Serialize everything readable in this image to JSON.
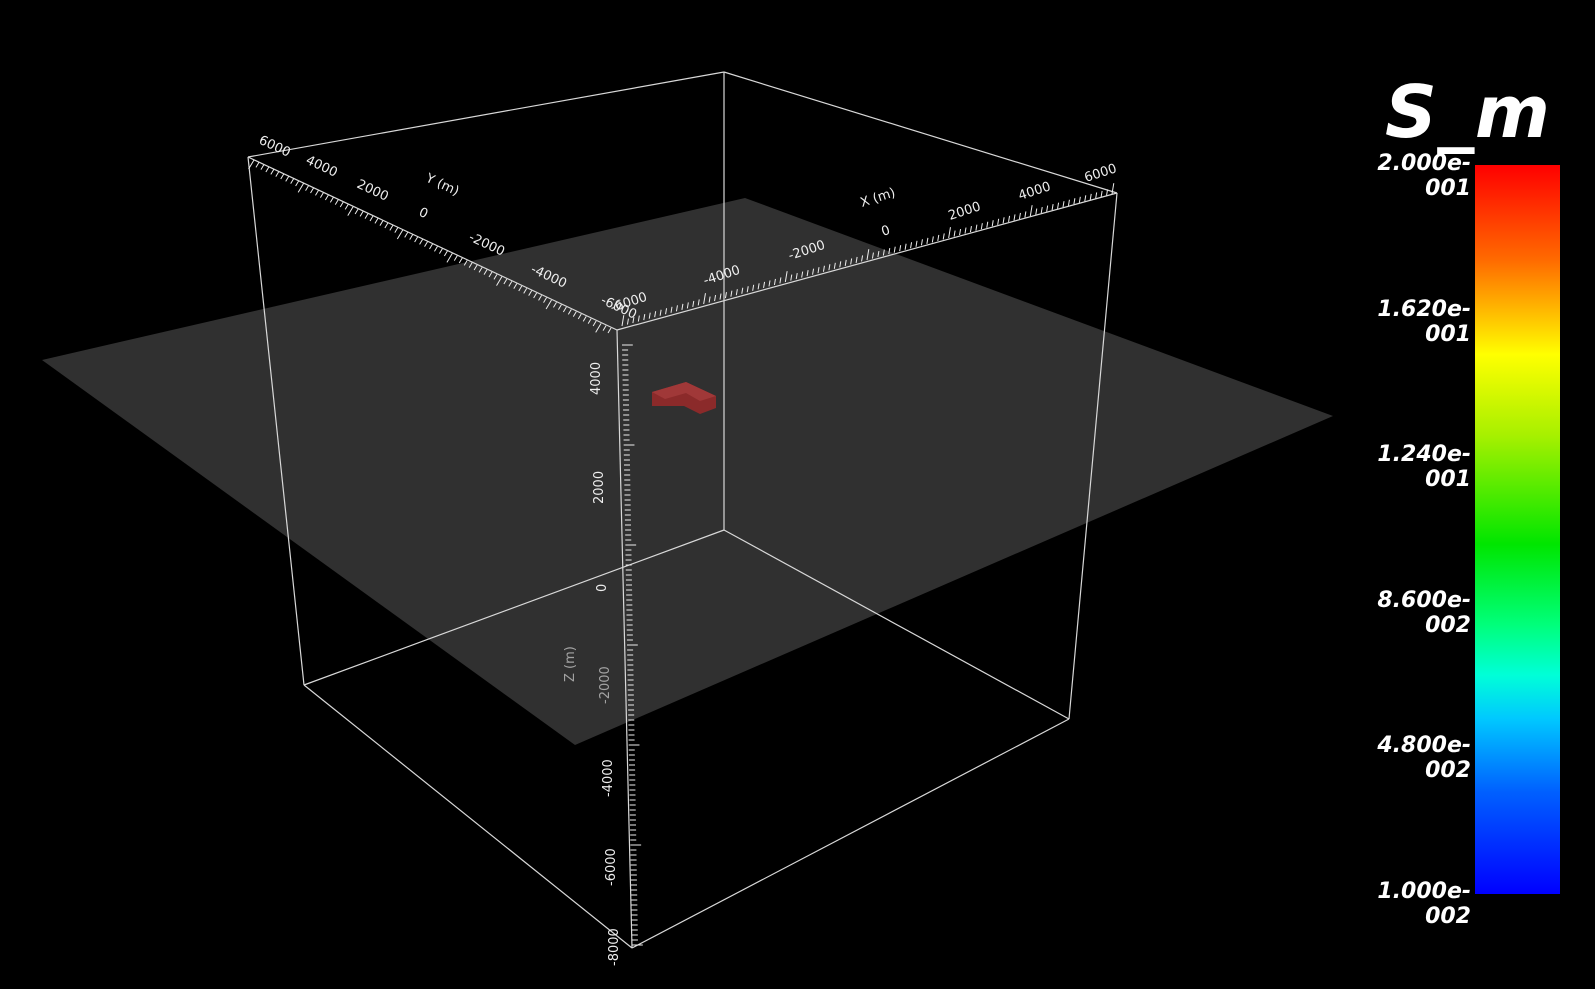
{
  "axes": {
    "x": {
      "label": "X (m)",
      "ticks": [
        "-6000",
        "-4000",
        "-2000",
        "0",
        "2000",
        "4000",
        "6000"
      ]
    },
    "y": {
      "label": "Y (m)",
      "ticks": [
        "6000",
        "4000",
        "2000",
        "0",
        "-2000",
        "-4000",
        "-6000"
      ]
    },
    "z": {
      "label": "Z (m)",
      "ticks": [
        "4000",
        "2000",
        "0",
        "-2000",
        "-4000",
        "-6000",
        "-8000"
      ]
    }
  },
  "legend": {
    "title": "S_m",
    "ticks": [
      "2.000e-001",
      "1.620e-001",
      "1.240e-001",
      "8.600e-002",
      "4.800e-002",
      "1.000e-002"
    ],
    "colors": [
      "#ff0000",
      "#ffff00",
      "#00ff00",
      "#00ffff",
      "#0000ff"
    ]
  },
  "scene": {
    "background": "#000000",
    "plane_color": "#333333",
    "box_color": "#cccccc",
    "object_color": "#8b2a2a"
  }
}
